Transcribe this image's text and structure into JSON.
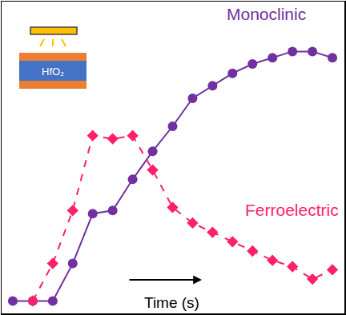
{
  "chart_data": {
    "type": "line",
    "x_label": "Time (s)",
    "x": [
      0,
      1,
      2,
      3,
      4,
      5,
      6,
      7,
      8,
      9,
      10,
      11,
      12,
      13,
      14,
      15,
      16
    ],
    "series": [
      {
        "name": "Monoclinic",
        "color": "#7030A0",
        "marker": "circle",
        "line_style": "solid",
        "values": [
          4,
          4,
          4,
          16,
          32,
          33,
          43,
          52,
          60,
          69,
          73,
          77,
          80,
          82,
          84,
          84,
          82
        ]
      },
      {
        "name": "Ferroelectric",
        "color": "#FF1F6B",
        "marker": "diamond",
        "line_style": "dashed",
        "values": [
          null,
          4,
          16,
          33,
          57,
          56,
          57,
          46,
          34,
          29,
          26,
          23,
          20,
          17,
          15,
          11,
          14
        ]
      }
    ],
    "xlim": [
      -0.56,
      16.6
    ],
    "ylim": [
      0,
      100
    ],
    "tick_labels": false,
    "grid": false,
    "inset": {
      "label": "HfO₂"
    }
  }
}
